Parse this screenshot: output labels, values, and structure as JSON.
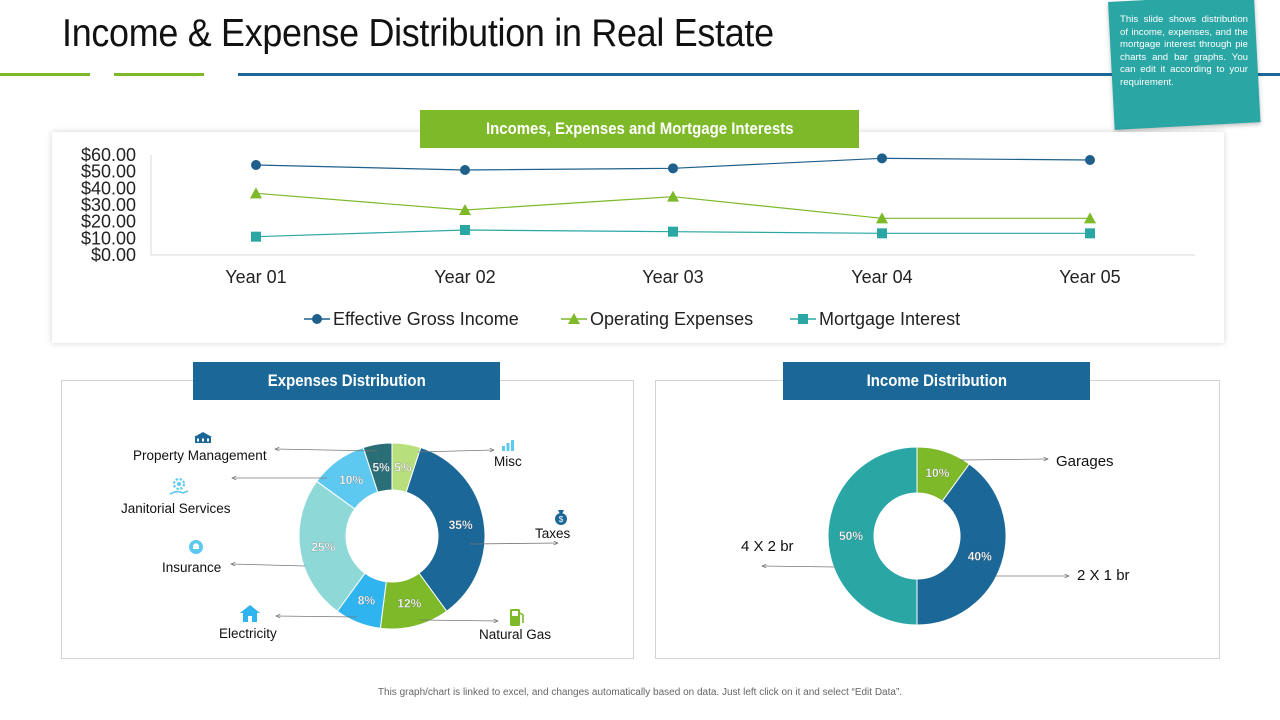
{
  "title": "Income & Expense Distribution in Real Estate",
  "note": "This slide shows distribution of income, expenses, and the mortgage interest through pie charts and bar graphs. You can edit it according to your requirement.",
  "footnote": "This graph/chart is linked to excel, and changes automatically based on data. Just left click on it and select “Edit Data”.",
  "colors": {
    "green": "#7db928",
    "navy": "#1b6898",
    "teal": "#2aa7a5",
    "line_blue": "#1f5f8b",
    "light_teal": "#8ed8d8",
    "sky": "#2fb4ef",
    "dark_teal": "#2a6e78",
    "light_green": "#b7e07c",
    "light_blue": "#5ec9f0"
  },
  "chart_data": [
    {
      "type": "line",
      "title": "Incomes, Expenses and Mortgage Interests",
      "categories": [
        "Year 01",
        "Year 02",
        "Year 03",
        "Year 04",
        "Year 05"
      ],
      "y_ticks": [
        "$0.00",
        "$10.00",
        "$20.00",
        "$30.00",
        "$40.00",
        "$50.00",
        "$60.00"
      ],
      "ylim": [
        0,
        60
      ],
      "legend_position": "bottom",
      "series": [
        {
          "name": "Effective Gross Income",
          "marker": "circle",
          "color": "#1f5f8b",
          "values": [
            54,
            51,
            52,
            58,
            57
          ]
        },
        {
          "name": "Operating Expenses",
          "marker": "triangle",
          "color": "#7db928",
          "values": [
            37,
            27,
            35,
            22,
            22
          ]
        },
        {
          "name": "Mortgage Interest",
          "marker": "square",
          "color": "#2aa7a5",
          "values": [
            11,
            15,
            14,
            13,
            13
          ]
        }
      ]
    },
    {
      "type": "pie",
      "title": "Expenses Distribution",
      "slices": [
        {
          "name": "Misc",
          "value": 5,
          "label": "5%",
          "color": "#b7e07c",
          "icon": "chart-bars-icon"
        },
        {
          "name": "Taxes",
          "value": 35,
          "label": "35%",
          "color": "#1b6898",
          "icon": "money-bag-icon"
        },
        {
          "name": "Natural Gas",
          "value": 12,
          "label": "12%",
          "color": "#7db928",
          "icon": "fuel-pump-icon"
        },
        {
          "name": "Electricity",
          "value": 8,
          "label": "8%",
          "color": "#2fb4ef",
          "icon": "house-icon"
        },
        {
          "name": "Insurance",
          "value": 25,
          "label": "25%",
          "color": "#8ed8d8",
          "icon": "hand-icon"
        },
        {
          "name": "Janitorial Services",
          "value": 10,
          "label": "10%",
          "color": "#5ec9f0",
          "icon": "gear-icon"
        },
        {
          "name": "Property Management",
          "value": 5,
          "label": "5%",
          "color": "#2a6e78",
          "icon": "building-icon"
        }
      ]
    },
    {
      "type": "pie",
      "title": "Income Distribution",
      "slices": [
        {
          "name": "Garages",
          "value": 10,
          "label": "10%",
          "color": "#7db928"
        },
        {
          "name": "2 X 1 br",
          "value": 40,
          "label": "40%",
          "color": "#1b6898"
        },
        {
          "name": "4 X 2 br",
          "value": 50,
          "label": "50%",
          "color": "#2aa7a5"
        }
      ]
    }
  ]
}
